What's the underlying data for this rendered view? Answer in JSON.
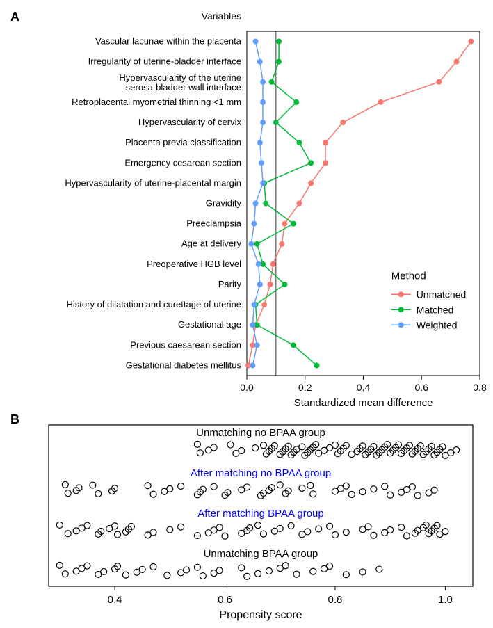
{
  "panel_a": {
    "label": "A",
    "header": "Variables",
    "variables": [
      "Vascular lacunae within the placenta",
      "Irregularity of uterine-bladder interface",
      "Hypervascularity of the uterine\nserosa-bladder wall interface",
      "Retroplacental myometrial thinning <1 mm",
      "Hypervascularity of cervix",
      "Placenta previa classification",
      "Emergency cesarean section",
      "Hypervascularity of uterine-placental margin",
      "Gravidity",
      "Preeclampsia",
      "Age at delivery",
      "Preoperative HGB level",
      "Parity",
      "History of dilatation and curettage of uterine",
      "Gestational age",
      "Previous caesarean section",
      "Gestational diabetes mellitus"
    ],
    "xlabel": "Standardized mean difference",
    "xlim": [
      0,
      0.8
    ],
    "xticks": [
      0.0,
      0.2,
      0.4,
      0.6,
      0.8
    ],
    "xtick_labels": [
      "0.0",
      "0.2",
      "0.4",
      "0.6",
      "0.8"
    ],
    "refline": 0.1,
    "series": {
      "Unmatched": {
        "color": "#f8766d",
        "values": [
          0.77,
          0.72,
          0.66,
          0.46,
          0.33,
          0.27,
          0.27,
          0.22,
          0.18,
          0.13,
          0.12,
          0.09,
          0.08,
          0.06,
          0.03,
          0.02,
          0.005
        ]
      },
      "Matched": {
        "color": "#00ba38",
        "values": [
          0.11,
          0.11,
          0.085,
          0.17,
          0.1,
          0.18,
          0.22,
          0.06,
          0.065,
          0.16,
          0.035,
          0.055,
          0.13,
          0.03,
          0.035,
          0.16,
          0.24
        ]
      },
      "Weighted": {
        "color": "#619cff",
        "values": [
          0.03,
          0.045,
          0.055,
          0.055,
          0.055,
          0.045,
          0.05,
          0.055,
          0.03,
          0.025,
          0.015,
          0.04,
          0.045,
          0.025,
          0.02,
          0.035,
          0.02
        ]
      }
    },
    "legend_title": "Method",
    "legend_items": [
      "Unmatched",
      "Matched",
      "Weighted"
    ],
    "label_fontsize": 13,
    "axis_label_fontsize": 15,
    "marker_radius": 4,
    "line_width": 1.5
  },
  "panel_b": {
    "label": "B",
    "xlabel": "Propensity score",
    "xlim": [
      0.28,
      1.05
    ],
    "xticks": [
      0.4,
      0.6,
      0.8,
      1.0
    ],
    "xtick_labels": [
      "0.4",
      "0.6",
      "0.8",
      "1.0"
    ],
    "marker_radius": 4.5,
    "marker_stroke": "#000000",
    "marker_fill": "none",
    "background": "#ffffff",
    "border_color": "#000000",
    "rows": [
      {
        "label": "Unmatching no BPAA group",
        "label_color": "#000000",
        "points": [
          0.55,
          0.555,
          0.57,
          0.58,
          0.61,
          0.62,
          0.63,
          0.655,
          0.67,
          0.675,
          0.68,
          0.685,
          0.69,
          0.7,
          0.705,
          0.71,
          0.715,
          0.72,
          0.725,
          0.73,
          0.74,
          0.745,
          0.75,
          0.755,
          0.76,
          0.765,
          0.77,
          0.78,
          0.79,
          0.8,
          0.805,
          0.81,
          0.815,
          0.82,
          0.83,
          0.84,
          0.845,
          0.85,
          0.855,
          0.86,
          0.865,
          0.87,
          0.875,
          0.88,
          0.885,
          0.89,
          0.895,
          0.9,
          0.905,
          0.91,
          0.915,
          0.92,
          0.925,
          0.93,
          0.935,
          0.94,
          0.945,
          0.95,
          0.955,
          0.96,
          0.965,
          0.97,
          0.975,
          0.98,
          0.985,
          0.99,
          0.995,
          1.0,
          1.01,
          1.02
        ]
      },
      {
        "label": "After matching no BPAA group",
        "label_color": "#0000ff",
        "points": [
          0.31,
          0.315,
          0.33,
          0.335,
          0.36,
          0.37,
          0.395,
          0.4,
          0.46,
          0.47,
          0.49,
          0.5,
          0.52,
          0.55,
          0.555,
          0.56,
          0.58,
          0.6,
          0.605,
          0.63,
          0.64,
          0.665,
          0.67,
          0.68,
          0.685,
          0.7,
          0.71,
          0.715,
          0.74,
          0.755,
          0.76,
          0.8,
          0.81,
          0.82,
          0.83,
          0.85,
          0.87,
          0.89,
          0.9,
          0.92,
          0.93,
          0.94,
          0.95,
          0.97,
          0.98
        ]
      },
      {
        "label": "After matching BPAA group",
        "label_color": "#0000ff",
        "points": [
          0.3,
          0.315,
          0.33,
          0.34,
          0.35,
          0.37,
          0.375,
          0.39,
          0.4,
          0.405,
          0.42,
          0.425,
          0.43,
          0.46,
          0.47,
          0.5,
          0.52,
          0.55,
          0.57,
          0.58,
          0.59,
          0.6,
          0.63,
          0.64,
          0.645,
          0.66,
          0.67,
          0.69,
          0.7,
          0.72,
          0.74,
          0.75,
          0.77,
          0.79,
          0.8,
          0.82,
          0.85,
          0.86,
          0.87,
          0.89,
          0.9,
          0.92,
          0.93,
          0.945,
          0.95,
          0.96,
          0.965,
          0.97,
          0.975,
          0.98,
          0.985,
          0.99,
          1.0
        ]
      },
      {
        "label": "Unmatching BPAA group",
        "label_color": "#000000",
        "points": [
          0.3,
          0.31,
          0.33,
          0.34,
          0.35,
          0.37,
          0.38,
          0.4,
          0.405,
          0.42,
          0.44,
          0.45,
          0.47,
          0.495,
          0.52,
          0.53,
          0.55,
          0.56,
          0.58,
          0.59,
          0.63,
          0.64,
          0.66,
          0.68,
          0.7,
          0.71,
          0.73,
          0.76,
          0.78,
          0.79,
          0.82,
          0.85,
          0.88
        ]
      }
    ],
    "label_fontsize": 15,
    "axis_label_fontsize": 16
  }
}
